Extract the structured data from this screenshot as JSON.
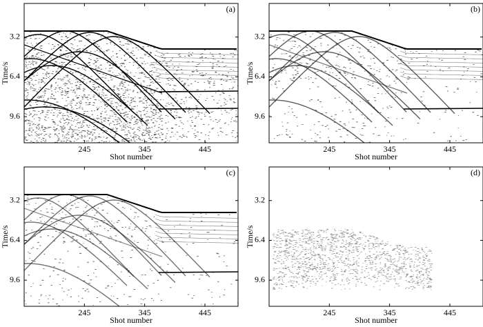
{
  "chart_data": [
    {
      "type": "seismic",
      "label": "(a)",
      "xlabel": "Shot number",
      "ylabel": "Time/s",
      "xlim": [
        145,
        500
      ],
      "ylim": [
        0.5,
        11.7
      ],
      "xticks": [
        245,
        345,
        445
      ],
      "yticks": [
        3.2,
        6.4,
        9.6
      ]
    },
    {
      "type": "seismic",
      "label": "(b)",
      "xlabel": "Shot number",
      "ylabel": "Time/s",
      "xlim": [
        145,
        500
      ],
      "ylim": [
        0.5,
        11.7
      ],
      "xticks": [
        245,
        345,
        445
      ],
      "yticks": [
        3.2,
        6.4,
        9.6
      ]
    },
    {
      "type": "seismic",
      "label": "(c)",
      "xlabel": "Shot number",
      "ylabel": "Time/s",
      "xlim": [
        145,
        500
      ],
      "ylim": [
        0.5,
        11.7
      ],
      "xticks": [
        245,
        345,
        445
      ],
      "yticks": [
        3.2,
        6.4,
        9.6
      ]
    },
    {
      "type": "seismic",
      "label": "(d)",
      "xlabel": "Shot number",
      "ylabel": "Time/s",
      "xlim": [
        145,
        500
      ],
      "ylim": [
        0.5,
        11.7
      ],
      "xticks": [
        245,
        345,
        445
      ],
      "yticks": [
        3.2,
        6.4,
        9.6
      ]
    }
  ]
}
